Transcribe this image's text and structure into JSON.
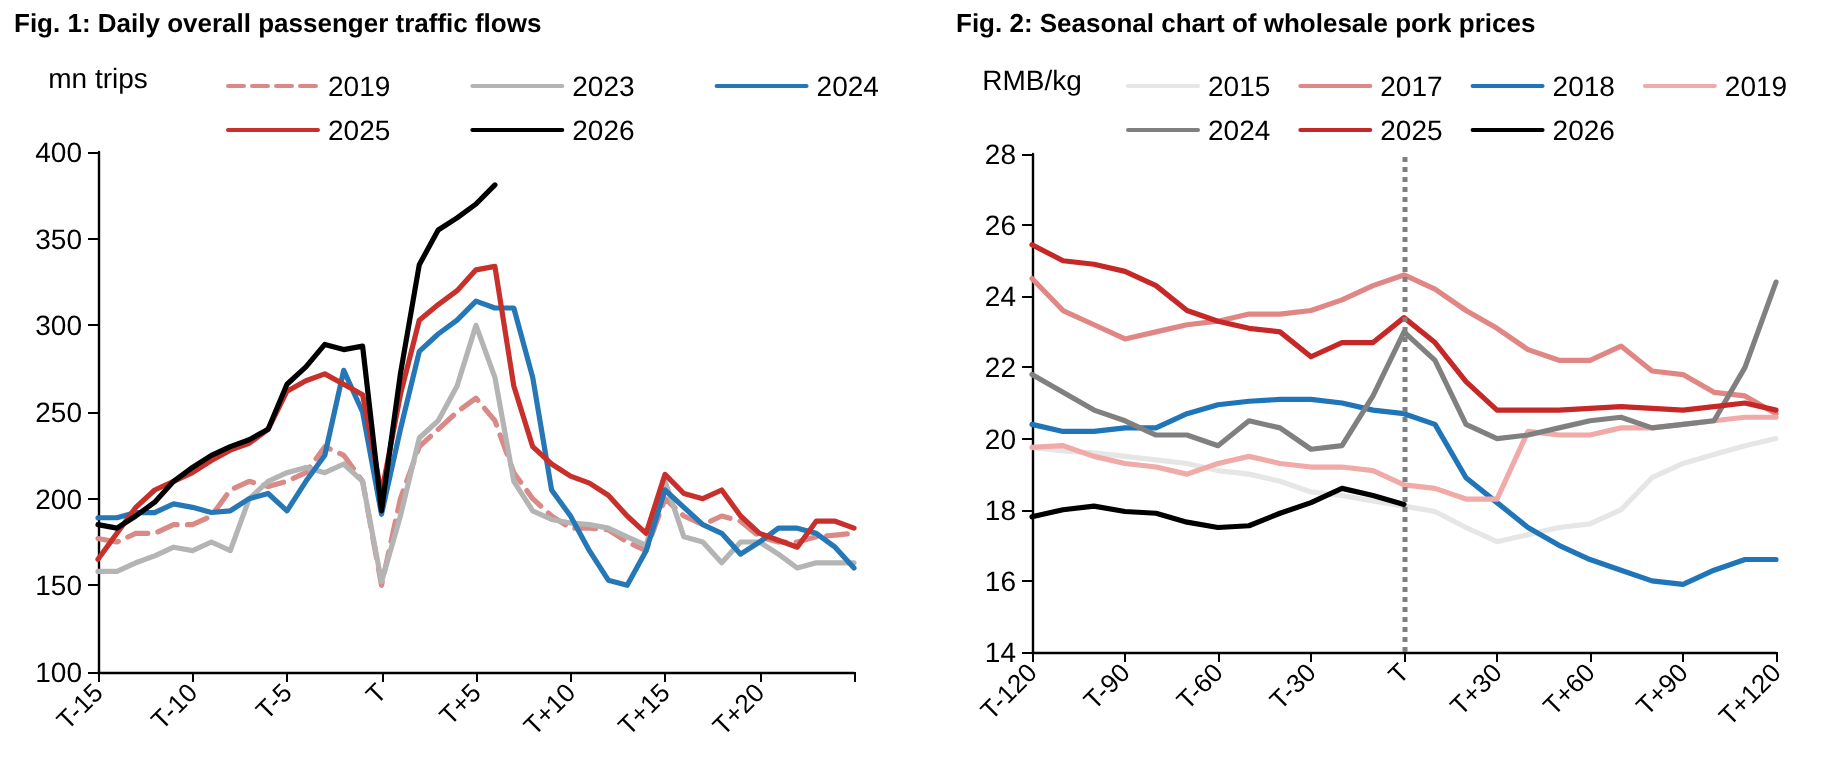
{
  "chart_data": [
    {
      "type": "line",
      "title": "Fig. 1: Daily overall passenger traffic flows",
      "ylabel": "mn trips",
      "legend": "top",
      "marker": "none",
      "categories": [
        "T-15",
        null,
        null,
        null,
        null,
        "T-10",
        null,
        null,
        null,
        null,
        "T-5",
        null,
        null,
        null,
        null,
        "T",
        null,
        null,
        null,
        null,
        "T+5",
        null,
        null,
        null,
        null,
        "T+10",
        null,
        null,
        null,
        null,
        "T+15",
        null,
        null,
        null,
        null,
        "T+20",
        null,
        null,
        null,
        null,
        null
      ],
      "ylim": [
        100,
        400
      ],
      "yticks": [
        100,
        150,
        200,
        250,
        300,
        350,
        400
      ],
      "series": [
        {
          "name": "2019",
          "color": "#d98a86",
          "line_style": "dashed",
          "values": [
            177,
            175,
            180,
            180,
            185,
            185,
            190,
            205,
            210,
            207,
            210,
            215,
            230,
            225,
            210,
            150,
            200,
            230,
            240,
            250,
            258,
            245,
            215,
            200,
            190,
            183,
            183,
            182,
            175,
            170,
            200,
            190,
            185,
            190,
            187,
            178,
            175,
            175,
            178,
            179,
            180
          ]
        },
        {
          "name": "2023",
          "color": "#b4b4b4",
          "values": [
            158,
            158,
            163,
            167,
            172,
            170,
            175,
            170,
            200,
            210,
            215,
            218,
            215,
            220,
            210,
            152,
            190,
            235,
            245,
            265,
            300,
            270,
            210,
            193,
            188,
            186,
            185,
            183,
            178,
            173,
            210,
            178,
            175,
            163,
            175,
            175,
            168,
            160,
            163,
            163,
            163
          ]
        },
        {
          "name": "2024",
          "color": "#2677b5",
          "values": [
            189,
            189,
            192,
            192,
            197,
            195,
            192,
            193,
            200,
            203,
            193,
            210,
            225,
            274,
            250,
            191,
            240,
            285,
            295,
            303,
            314,
            310,
            310,
            270,
            205,
            190,
            170,
            153,
            150,
            170,
            205,
            195,
            185,
            180,
            168,
            175,
            183,
            183,
            180,
            172,
            160
          ]
        },
        {
          "name": "2025",
          "color": "#c8302c",
          "values": [
            165,
            180,
            195,
            205,
            210,
            215,
            222,
            228,
            232,
            240,
            262,
            268,
            272,
            266,
            260,
            203,
            260,
            303,
            312,
            320,
            332,
            334,
            265,
            230,
            220,
            213,
            209,
            202,
            190,
            180,
            214,
            203,
            200,
            205,
            190,
            180,
            176,
            172,
            187,
            187,
            183
          ]
        },
        {
          "name": "2026",
          "color": "#000000",
          "values": [
            185,
            183,
            190,
            198,
            210,
            218,
            225,
            230,
            234,
            240,
            266,
            276,
            289,
            286,
            288,
            193,
            272,
            335,
            355,
            362,
            370,
            381,
            null,
            null,
            null,
            null,
            null,
            null,
            null,
            null,
            null,
            null,
            null,
            null,
            null,
            null,
            null,
            null,
            null,
            null,
            null
          ]
        }
      ]
    },
    {
      "type": "line",
      "title": "Fig. 2: Seasonal chart of wholesale pork prices",
      "ylabel": "RMB/kg",
      "legend": "top",
      "marker": "none",
      "categories": [
        "T-120",
        null,
        null,
        "T-90",
        null,
        null,
        "T-60",
        null,
        null,
        "T-30",
        null,
        null,
        "T",
        null,
        null,
        "T+30",
        null,
        null,
        "T+60",
        null,
        null,
        "T+90",
        null,
        null,
        "T+120"
      ],
      "ylim": [
        14,
        28
      ],
      "yticks": [
        14,
        16,
        18,
        20,
        22,
        24,
        26,
        28
      ],
      "ref_lines": [
        {
          "axis": "x",
          "value": "T",
          "color": "#808080",
          "line_style": "dotted"
        }
      ],
      "series": [
        {
          "name": "2015",
          "color": "#e6e6e6",
          "values": [
            19.75,
            19.65,
            19.6,
            19.5,
            19.4,
            19.3,
            19.1,
            19.0,
            18.8,
            18.5,
            18.4,
            18.25,
            18.1,
            17.95,
            17.5,
            17.1,
            17.3,
            17.5,
            17.6,
            18.0,
            18.9,
            19.3,
            19.55,
            19.8,
            20.0
          ]
        },
        {
          "name": "2017",
          "color": "#e08785",
          "values": [
            24.5,
            23.6,
            23.2,
            22.8,
            23.0,
            23.2,
            23.3,
            23.5,
            23.5,
            23.6,
            23.9,
            24.3,
            24.6,
            24.2,
            23.6,
            23.1,
            22.5,
            22.2,
            22.2,
            22.6,
            21.9,
            21.8,
            21.3,
            21.2,
            20.7
          ]
        },
        {
          "name": "2018",
          "color": "#1f75b8",
          "values": [
            20.4,
            20.2,
            20.2,
            20.3,
            20.3,
            20.7,
            20.95,
            21.05,
            21.1,
            21.1,
            21.0,
            20.8,
            20.7,
            20.4,
            18.9,
            18.2,
            17.5,
            17.0,
            16.6,
            16.3,
            16.0,
            15.9,
            16.3,
            16.6,
            16.6
          ]
        },
        {
          "name": "2019",
          "color": "#f0aaa8",
          "values": [
            19.75,
            19.8,
            19.5,
            19.3,
            19.2,
            19.0,
            19.3,
            19.5,
            19.3,
            19.2,
            19.2,
            19.1,
            18.7,
            18.6,
            18.3,
            18.3,
            20.2,
            20.1,
            20.1,
            20.3,
            20.3,
            20.4,
            20.5,
            20.6,
            20.6
          ]
        },
        {
          "name": "2024",
          "color": "#808080",
          "values": [
            21.8,
            21.3,
            20.8,
            20.5,
            20.1,
            20.1,
            19.8,
            20.5,
            20.3,
            19.7,
            19.8,
            21.2,
            23.0,
            22.2,
            20.4,
            20.0,
            20.1,
            20.3,
            20.5,
            20.6,
            20.3,
            20.4,
            20.5,
            22.0,
            24.4
          ]
        },
        {
          "name": "2025",
          "color": "#c62828",
          "values": [
            25.45,
            25.0,
            24.9,
            24.7,
            24.3,
            23.6,
            23.3,
            23.1,
            23.0,
            22.3,
            22.7,
            22.7,
            23.4,
            22.7,
            21.6,
            20.8,
            20.8,
            20.8,
            20.85,
            20.9,
            20.85,
            20.8,
            20.9,
            21.0,
            20.8
          ]
        },
        {
          "name": "2026",
          "color": "#000000",
          "values": [
            17.8,
            18.0,
            18.1,
            17.95,
            17.9,
            17.65,
            17.5,
            17.55,
            17.9,
            18.2,
            18.6,
            18.4,
            18.15,
            null,
            null,
            null,
            null,
            null,
            null,
            null,
            null,
            null,
            null,
            null,
            null
          ]
        }
      ]
    }
  ]
}
